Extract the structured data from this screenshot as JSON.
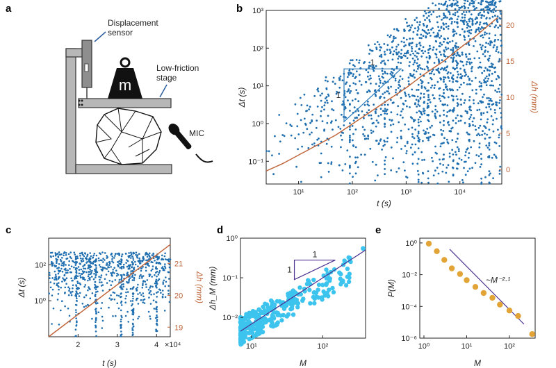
{
  "panels": {
    "a": "a",
    "b": "b",
    "c": "c",
    "d": "d",
    "e": "e"
  },
  "schematic": {
    "displacement_sensor": [
      "Displacement",
      "sensor"
    ],
    "stage": [
      "Low-friction",
      "stage"
    ],
    "mass": "m",
    "mic": "MIC"
  },
  "colors": {
    "scatter": "#1f6fb0",
    "hline": "#c0663b",
    "cyan": "#3cc4ee",
    "fitline": "#4b2f8f",
    "gold": "#e3a437",
    "slope": "#2a7ab8"
  },
  "chart_data": [
    {
      "panel": "b",
      "type": "scatter",
      "xlabel": "t (s)",
      "ylabel": "Δt (s)",
      "ylabel_right": "Δh (mm)",
      "xscale": "log",
      "yscale": "log",
      "xlim": [
        2.5,
        60000
      ],
      "ylim": [
        0.025,
        1000
      ],
      "x_ticks": [
        {
          "v": 10,
          "label": "10¹"
        },
        {
          "v": 100,
          "label": "10²"
        },
        {
          "v": 1000,
          "label": "10³"
        },
        {
          "v": 10000,
          "label": "10⁴"
        }
      ],
      "y_ticks": [
        {
          "v": 0.1,
          "label": "10⁻¹"
        },
        {
          "v": 1,
          "label": "10⁰"
        },
        {
          "v": 10,
          "label": "10¹"
        },
        {
          "v": 100,
          "label": "10²"
        },
        {
          "v": 1000,
          "label": "10³"
        }
      ],
      "y2lim": [
        -2,
        22
      ],
      "y2_ticks": [
        0,
        5,
        10,
        15,
        20
      ],
      "height_curve": {
        "t": [
          2.5,
          5,
          10,
          20,
          50,
          100,
          200,
          500,
          1000,
          2000,
          5000,
          10000,
          20000,
          50000
        ],
        "h": [
          -0.2,
          0.8,
          2,
          3.2,
          4.8,
          6.3,
          7.8,
          9.8,
          11.3,
          13,
          15,
          16.8,
          18.5,
          21
        ]
      },
      "slope_triangle": {
        "label_top": "1",
        "label_left": "1"
      }
    },
    {
      "panel": "c",
      "type": "scatter",
      "xlabel": "t (s)",
      "ylabel": "Δt (s)",
      "ylabel_right": "Δh (mm)",
      "xlim": [
        12500,
        43500
      ],
      "ylim_log": [
        0.01,
        3000
      ],
      "x_ticks": [
        {
          "v": 20000,
          "label": "2"
        },
        {
          "v": 30000,
          "label": "3"
        },
        {
          "v": 40000,
          "label": "4"
        }
      ],
      "x_multiplier": "×10⁴",
      "y_ticks": [
        {
          "v": 1,
          "label": "10⁰"
        },
        {
          "v": 100,
          "label": "10²"
        }
      ],
      "y2lim": [
        18.7,
        21.8
      ],
      "y2_ticks": [
        19,
        20,
        21
      ],
      "height_curve": {
        "t": [
          12500,
          43500
        ],
        "h": [
          18.7,
          21.6
        ]
      },
      "burst_times": [
        19500,
        24500,
        31000,
        34000,
        40000
      ]
    },
    {
      "panel": "d",
      "type": "scatter",
      "xlabel": "M",
      "ylabel": "Δh_M (mm)",
      "xscale": "log",
      "yscale": "log",
      "xlim": [
        7,
        400
      ],
      "ylim": [
        0.003,
        1
      ],
      "x_ticks": [
        {
          "v": 10,
          "label": "10¹"
        },
        {
          "v": 100,
          "label": "10²"
        }
      ],
      "y_ticks": [
        {
          "v": 0.01,
          "label": "10⁻²"
        },
        {
          "v": 0.1,
          "label": "10⁻¹"
        },
        {
          "v": 1,
          "label": "10⁰"
        }
      ],
      "fit_line": {
        "x": [
          7,
          400
        ],
        "y": [
          0.0045,
          0.5
        ]
      },
      "slope_triangle": {
        "label_top": "1",
        "label_left": "1"
      }
    },
    {
      "panel": "e",
      "type": "scatter",
      "xlabel": "M",
      "ylabel": "P(M)",
      "xscale": "log",
      "yscale": "log",
      "xlim": [
        0.8,
        400
      ],
      "ylim": [
        1e-06,
        2
      ],
      "x_ticks": [
        {
          "v": 1,
          "label": "10⁰"
        },
        {
          "v": 10,
          "label": "10¹"
        },
        {
          "v": 100,
          "label": "10²"
        }
      ],
      "y_ticks": [
        {
          "v": 1,
          "label": "10⁰"
        },
        {
          "v": 0.01,
          "label": "10⁻²"
        },
        {
          "v": 0.0001,
          "label": "10⁻⁴"
        },
        {
          "v": 1e-06,
          "label": "10⁻⁶"
        }
      ],
      "points": {
        "x": [
          1.3,
          2,
          3,
          4.5,
          7,
          10,
          16,
          25,
          40,
          60,
          100,
          160,
          340
        ],
        "y": [
          0.9,
          0.3,
          0.085,
          0.025,
          0.011,
          0.0045,
          0.0017,
          0.0007,
          0.00035,
          0.00013,
          5.5e-05,
          2.5e-05,
          1.8e-06
        ]
      },
      "fit_line": {
        "x": [
          4,
          220
        ],
        "y": [
          0.4,
          7.5e-06
        ]
      },
      "annotation": "~M⁻²·¹"
    }
  ]
}
